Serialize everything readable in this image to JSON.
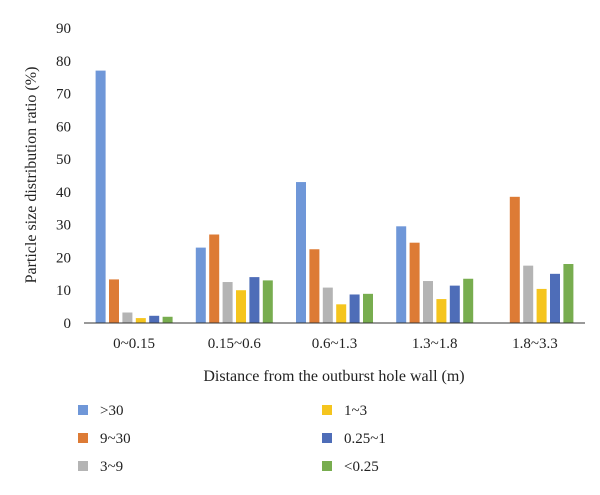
{
  "chart_data": {
    "type": "bar",
    "title": "",
    "xlabel": "Distance from the outburst hole wall (m)",
    "ylabel": "Particle size distribution ratio (%)",
    "ylim": [
      0,
      90
    ],
    "yticks": [
      "0",
      "10",
      "20",
      "30",
      "40",
      "50",
      "60",
      "70",
      "80",
      "90"
    ],
    "grid": false,
    "legend_position": "bottom",
    "categories": [
      "0~0.15",
      "0.15~0.6",
      "0.6~1.3",
      "1.3~1.8",
      "1.8~3.3"
    ],
    "series": [
      {
        "name": ">30",
        "color": "#6F97D8",
        "values": [
          77,
          23,
          43,
          29.5,
          0
        ]
      },
      {
        "name": "9~30",
        "color": "#DD7B35",
        "values": [
          13.3,
          27,
          22.5,
          24.5,
          38.5
        ]
      },
      {
        "name": "3~9",
        "color": "#B4B4B4",
        "values": [
          3.2,
          12.5,
          10.8,
          12.8,
          17.5
        ]
      },
      {
        "name": "1~3",
        "color": "#F5C51E",
        "values": [
          1.5,
          10,
          5.7,
          7.3,
          10.4
        ]
      },
      {
        "name": "0.25~1",
        "color": "#4E6DB8",
        "values": [
          2.2,
          14,
          8.7,
          11.4,
          15
        ]
      },
      {
        "name": "<0.25",
        "color": "#78AD4F",
        "values": [
          1.9,
          13,
          8.9,
          13.5,
          18
        ]
      }
    ]
  }
}
